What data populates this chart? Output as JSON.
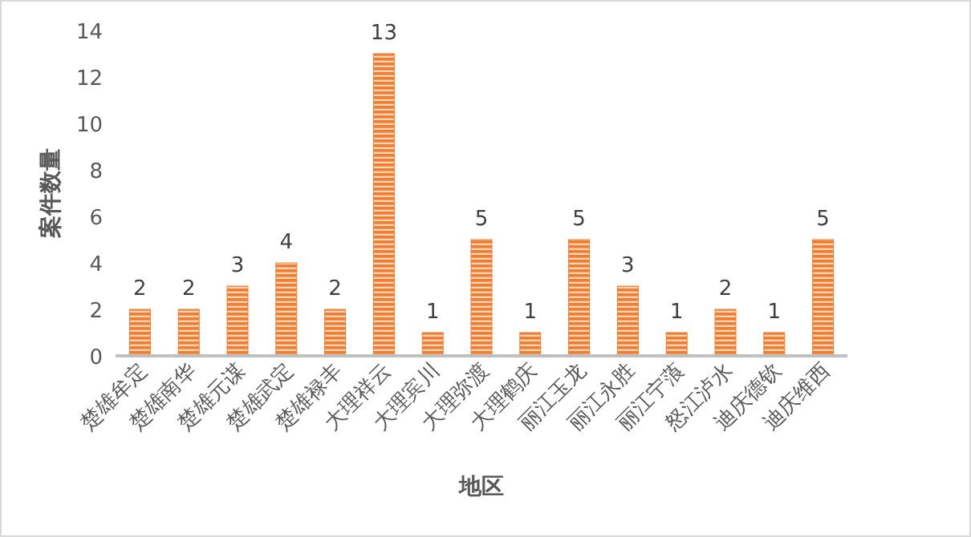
{
  "chart_data": {
    "type": "bar",
    "xlabel": "地区",
    "ylabel": "案件数量",
    "categories": [
      "楚雄牟定",
      "楚雄南华",
      "楚雄元谋",
      "楚雄武定",
      "楚雄禄丰",
      "大理祥云",
      "大理宾川",
      "大理弥渡",
      "大理鹤庆",
      "丽江玉龙",
      "丽江永胜",
      "丽江宁蒗",
      "怒江泸水",
      "迪庆德钦",
      "迪庆维西"
    ],
    "values": [
      2,
      2,
      3,
      4,
      2,
      13,
      1,
      5,
      1,
      5,
      3,
      1,
      2,
      1,
      5
    ],
    "color": "#ed7d31",
    "ylim": [
      0,
      14
    ],
    "yticks": [
      0,
      2,
      4,
      6,
      8,
      10,
      12,
      14
    ],
    "data_labels": true
  }
}
